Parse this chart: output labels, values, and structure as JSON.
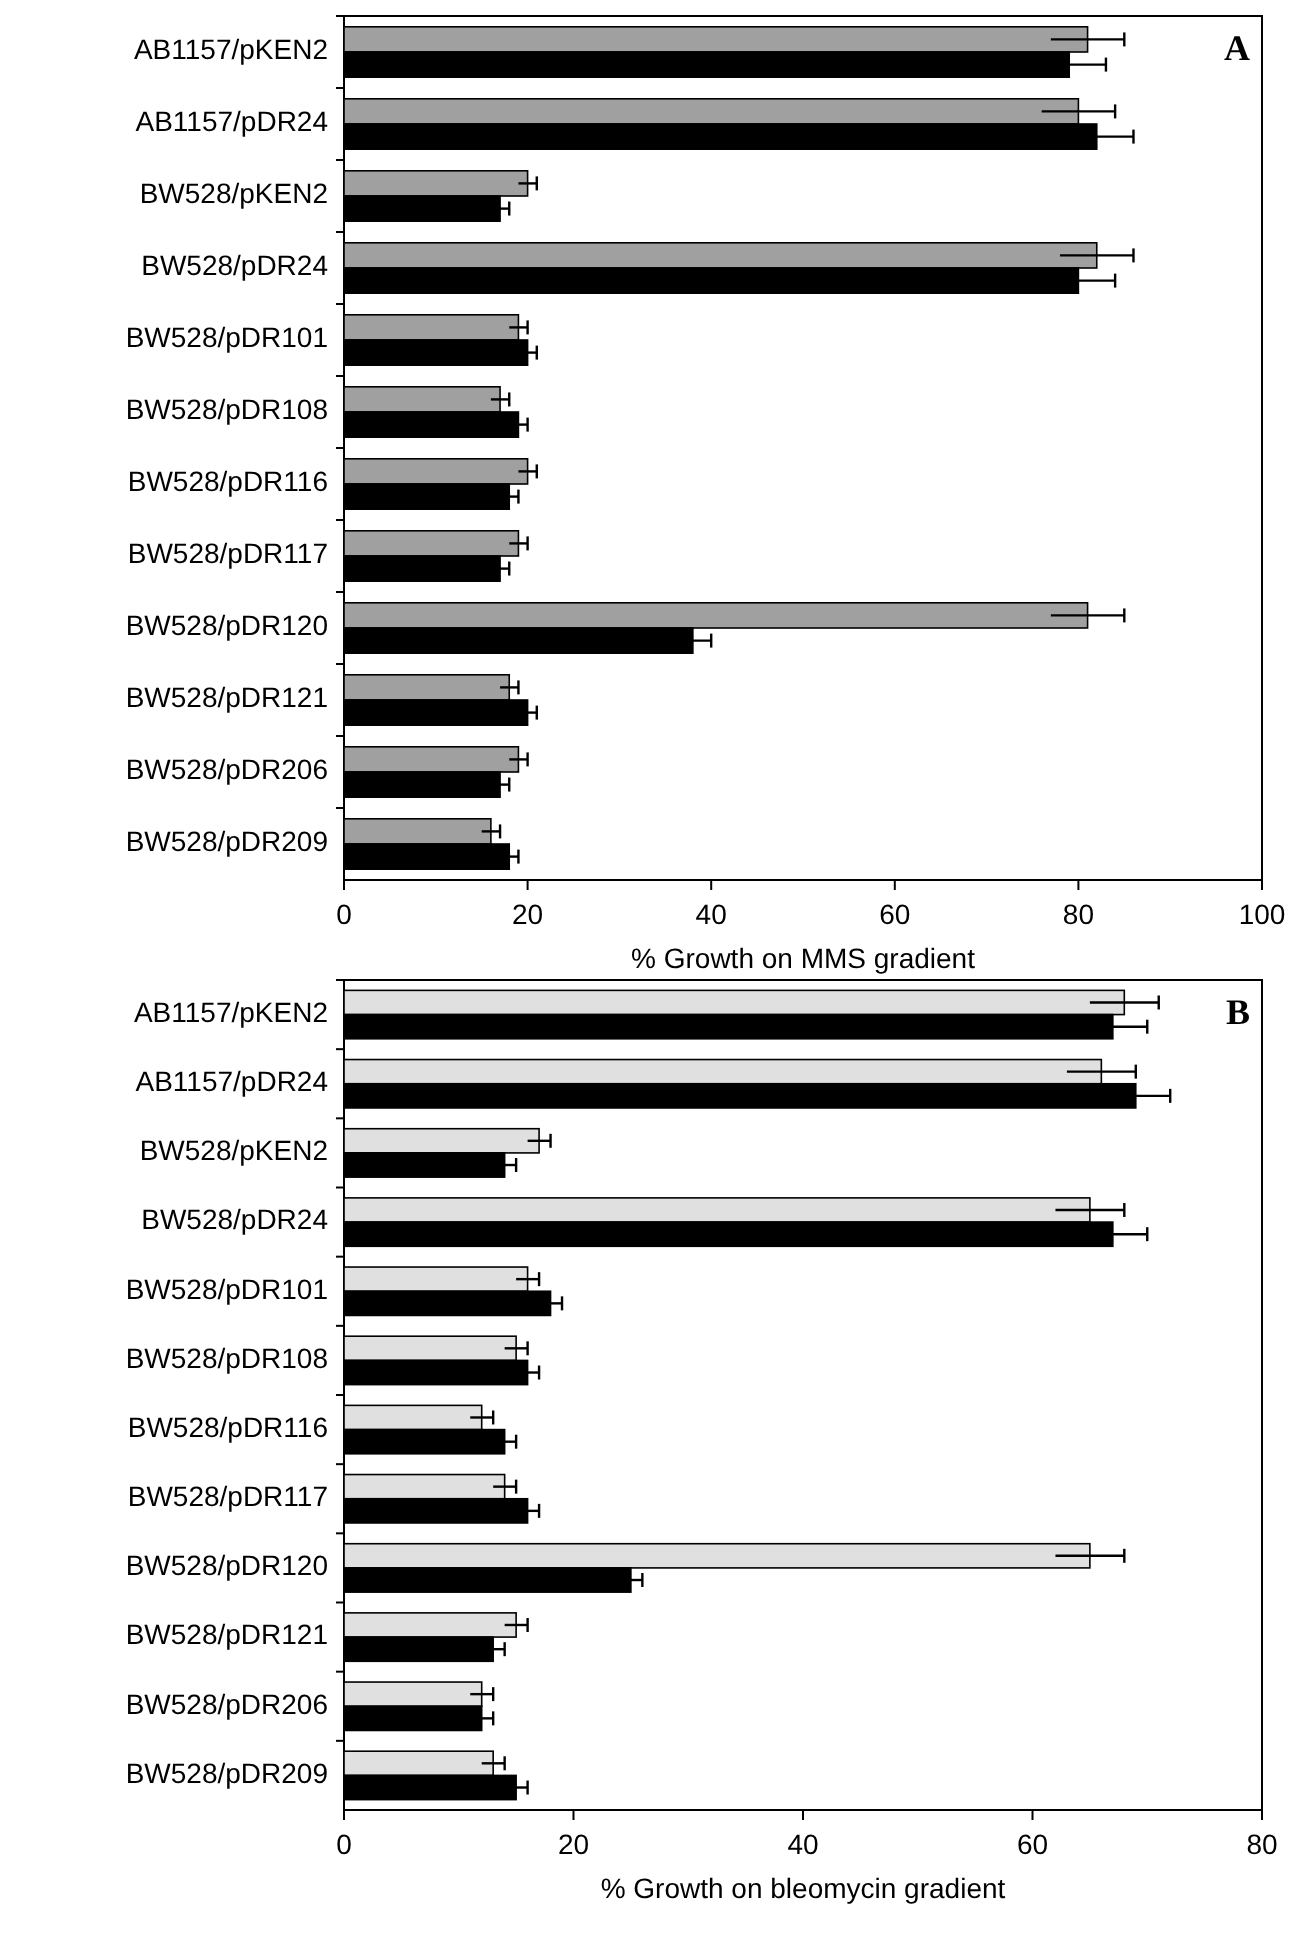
{
  "chart_data": [
    {
      "type": "bar",
      "orientation": "horizontal",
      "xlabel": "% Growth on MMS gradient",
      "annotations": [
        "A"
      ],
      "categories": [
        "AB1157/pKEN2",
        "AB1157/pDR24",
        "BW528/pKEN2",
        "BW528/pDR24",
        "BW528/pDR101",
        "BW528/pDR108",
        "BW528/pDR116",
        "BW528/pDR117",
        "BW528/pDR120",
        "BW528/pDR121",
        "BW528/pDR206",
        "BW528/pDR209"
      ],
      "xlim": [
        0,
        100
      ],
      "xticks": [
        0,
        20,
        40,
        60,
        80,
        100
      ],
      "grid": false,
      "series": [
        {
          "color": "#a0a0a0",
          "values": [
            81,
            80,
            20,
            82,
            19,
            17,
            20,
            19,
            81,
            18,
            19,
            16
          ],
          "errors": [
            4,
            4,
            1,
            4,
            1,
            1,
            1,
            1,
            4,
            1,
            1,
            1
          ]
        },
        {
          "color": "#000000",
          "values": [
            79,
            82,
            17,
            80,
            20,
            19,
            18,
            17,
            38,
            20,
            17,
            18
          ],
          "errors": [
            4,
            4,
            1,
            4,
            1,
            1,
            1,
            1,
            2,
            1,
            1,
            1
          ]
        }
      ]
    },
    {
      "type": "bar",
      "orientation": "horizontal",
      "xlabel": "% Growth on bleomycin gradient",
      "annotations": [
        "B"
      ],
      "categories": [
        "AB1157/pKEN2",
        "AB1157/pDR24",
        "BW528/pKEN2",
        "BW528/pDR24",
        "BW528/pDR101",
        "BW528/pDR108",
        "BW528/pDR116",
        "BW528/pDR117",
        "BW528/pDR120",
        "BW528/pDR121",
        "BW528/pDR206",
        "BW528/pDR209"
      ],
      "xlim": [
        0,
        80
      ],
      "xticks": [
        0,
        20,
        40,
        60,
        80
      ],
      "grid": false,
      "series": [
        {
          "color": "#e0e0e0",
          "values": [
            68,
            66,
            17,
            65,
            16,
            15,
            12,
            14,
            65,
            15,
            12,
            13
          ],
          "errors": [
            3,
            3,
            1,
            3,
            1,
            1,
            1,
            1,
            3,
            1,
            1,
            1
          ]
        },
        {
          "color": "#000000",
          "values": [
            67,
            69,
            14,
            67,
            18,
            16,
            14,
            16,
            25,
            13,
            12,
            15
          ],
          "errors": [
            3,
            3,
            1,
            3,
            1,
            1,
            1,
            1,
            1,
            1,
            1,
            1
          ]
        }
      ]
    }
  ]
}
